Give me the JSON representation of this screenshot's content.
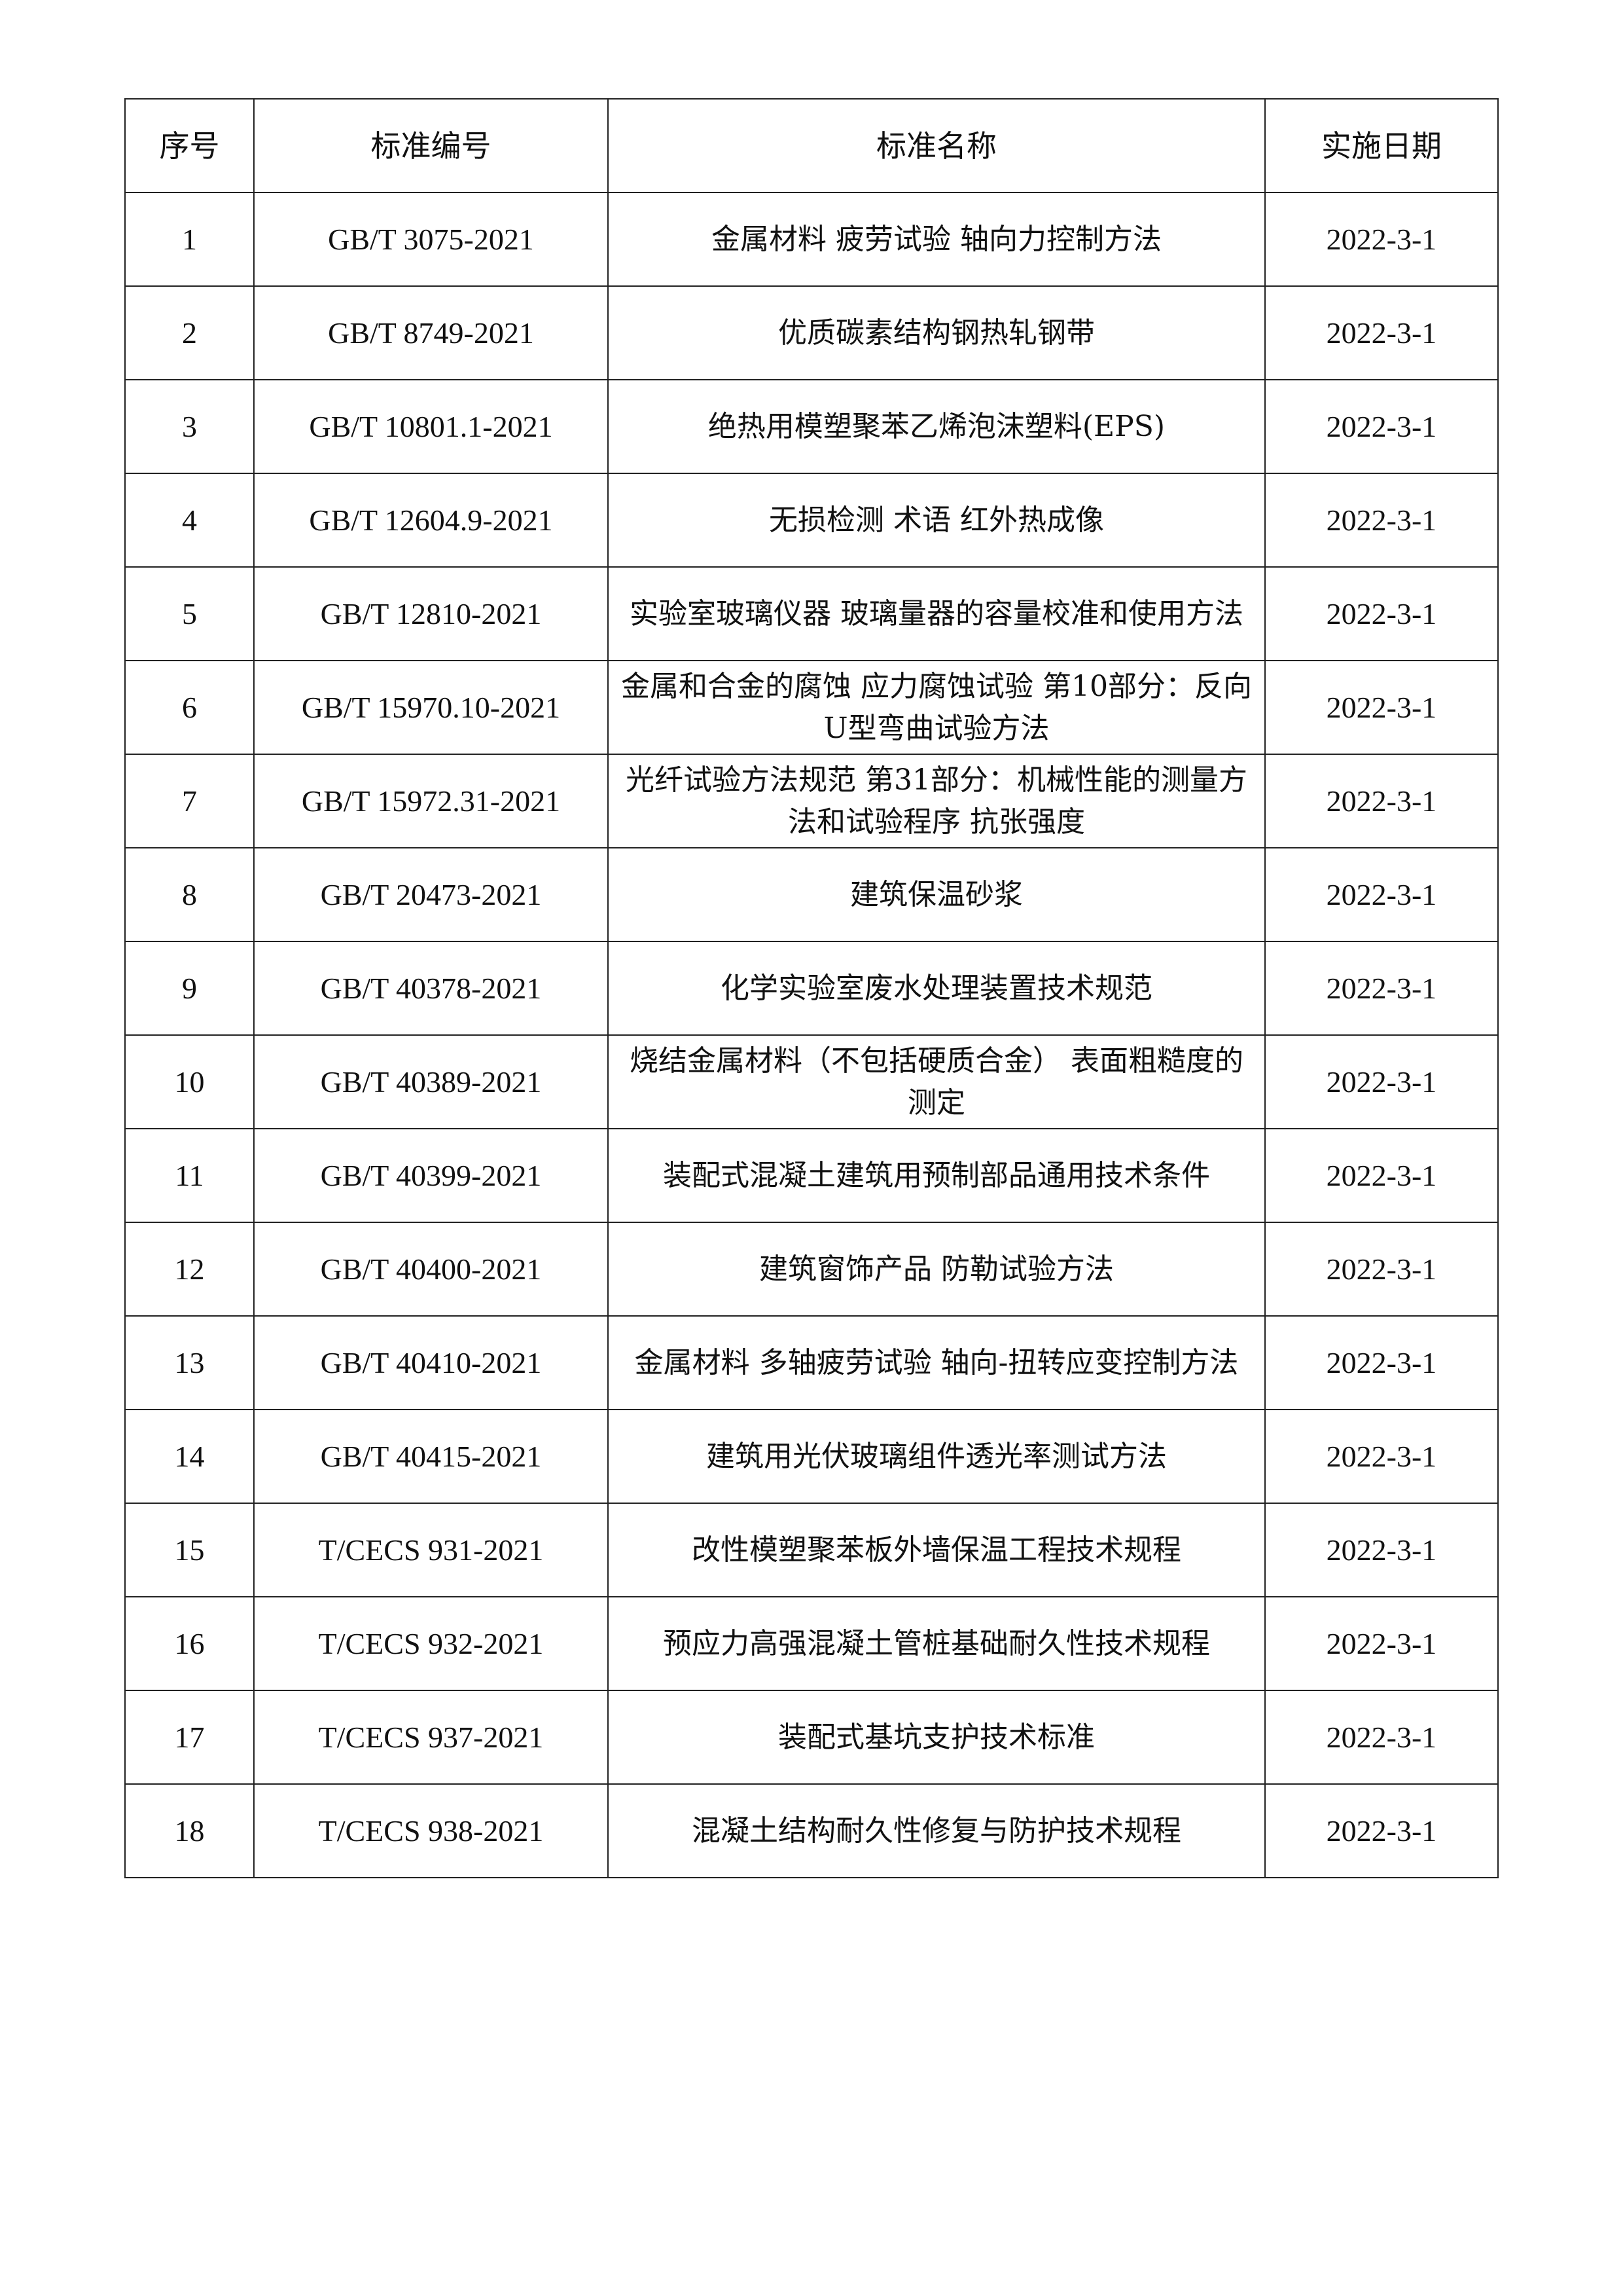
{
  "table": {
    "headers": [
      "序号",
      "标准编号",
      "标准名称",
      "实施日期"
    ],
    "rows": [
      [
        "1",
        "GB/T 3075-2021",
        "金属材料 疲劳试验 轴向力控制方法",
        "2022-3-1"
      ],
      [
        "2",
        "GB/T 8749-2021",
        "优质碳素结构钢热轧钢带",
        "2022-3-1"
      ],
      [
        "3",
        "GB/T 10801.1-2021",
        "绝热用模塑聚苯乙烯泡沫塑料(EPS)",
        "2022-3-1"
      ],
      [
        "4",
        "GB/T 12604.9-2021",
        "无损检测 术语 红外热成像",
        "2022-3-1"
      ],
      [
        "5",
        "GB/T 12810-2021",
        "实验室玻璃仪器 玻璃量器的容量校准和使用方法",
        "2022-3-1"
      ],
      [
        "6",
        "GB/T 15970.10-2021",
        "金属和合金的腐蚀 应力腐蚀试验 第10部分：反向U型弯曲试验方法",
        "2022-3-1"
      ],
      [
        "7",
        "GB/T 15972.31-2021",
        "光纤试验方法规范 第31部分：机械性能的测量方法和试验程序 抗张强度",
        "2022-3-1"
      ],
      [
        "8",
        "GB/T 20473-2021",
        "建筑保温砂浆",
        "2022-3-1"
      ],
      [
        "9",
        "GB/T 40378-2021",
        "化学实验室废水处理装置技术规范",
        "2022-3-1"
      ],
      [
        "10",
        "GB/T 40389-2021",
        "烧结金属材料（不包括硬质合金） 表面粗糙度的测定",
        "2022-3-1"
      ],
      [
        "11",
        "GB/T 40399-2021",
        "装配式混凝土建筑用预制部品通用技术条件",
        "2022-3-1"
      ],
      [
        "12",
        "GB/T 40400-2021",
        "建筑窗饰产品 防勒试验方法",
        "2022-3-1"
      ],
      [
        "13",
        "GB/T 40410-2021",
        "金属材料 多轴疲劳试验 轴向-扭转应变控制方法",
        "2022-3-1"
      ],
      [
        "14",
        "GB/T 40415-2021",
        "建筑用光伏玻璃组件透光率测试方法",
        "2022-3-1"
      ],
      [
        "15",
        "T/CECS 931-2021",
        "改性模塑聚苯板外墙保温工程技术规程",
        "2022-3-1"
      ],
      [
        "16",
        "T/CECS 932-2021",
        "预应力高强混凝土管桩基础耐久性技术规程",
        "2022-3-1"
      ],
      [
        "17",
        "T/CECS 937-2021",
        "装配式基坑支护技术标准",
        "2022-3-1"
      ],
      [
        "18",
        "T/CECS 938-2021",
        "混凝土结构耐久性修复与防护技术规程",
        "2022-3-1"
      ]
    ]
  }
}
